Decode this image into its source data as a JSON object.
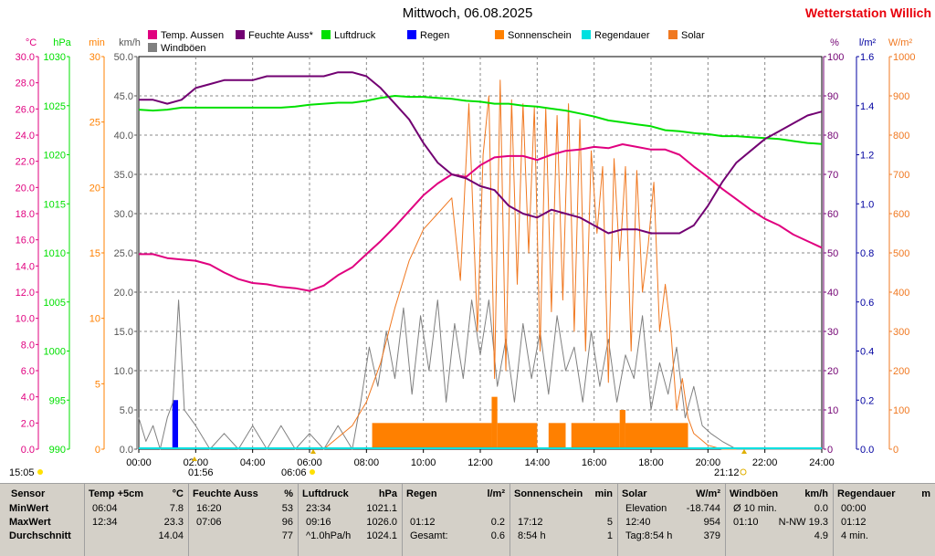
{
  "title": "Mittwoch, 06.08.2025",
  "station": "Wetterstation Willich",
  "colors": {
    "temp": "#e0007f",
    "humidity": "#720072",
    "pressure": "#00e000",
    "rain": "#0000ff",
    "sunshine": "#ff8000",
    "solar": "#f07820",
    "wind": "#808080",
    "rainrate": "#00e0e0",
    "grid": "#888888"
  },
  "legend": [
    {
      "label": "Temp. Aussen",
      "color": "#e0007f"
    },
    {
      "label": "Feuchte Auss*",
      "color": "#720072"
    },
    {
      "label": "Luftdruck",
      "color": "#00e000"
    },
    {
      "label": "Regen",
      "color": "#0000ff"
    },
    {
      "label": "Sonnenschein",
      "color": "#ff8000"
    },
    {
      "label": "Regendauer",
      "color": "#00e0e0"
    },
    {
      "label": "Solar",
      "color": "#f07820"
    },
    {
      "label": "Windböen",
      "color": "#808080"
    }
  ],
  "axis_units": {
    "temp": "°C",
    "pressure": "hPa",
    "sunmin": "min",
    "wind": "km/h",
    "humidity": "%",
    "rain": "l/m²",
    "solar": "W/m²"
  },
  "axis_ticks": {
    "temp": [
      "0.0",
      "2.0",
      "4.0",
      "6.0",
      "8.0",
      "10.0",
      "12.0",
      "14.0",
      "16.0",
      "18.0",
      "20.0",
      "22.0",
      "24.0",
      "26.0",
      "28.0",
      "30.0"
    ],
    "pressure": [
      "990",
      "995",
      "1000",
      "1005",
      "1010",
      "1015",
      "1020",
      "1025",
      "1030"
    ],
    "sunmin": [
      "0",
      "5",
      "10",
      "15",
      "20",
      "25",
      "30"
    ],
    "wind": [
      "0.0",
      "5.0",
      "10.0",
      "15.0",
      "20.0",
      "25.0",
      "30.0",
      "35.0",
      "40.0",
      "45.0",
      "50.0"
    ],
    "humidity": [
      "0",
      "10",
      "20",
      "30",
      "40",
      "50",
      "60",
      "70",
      "80",
      "90",
      "100"
    ],
    "rain": [
      "0.0",
      "0.2",
      "0.4",
      "0.6",
      "0.8",
      "1.0",
      "1.2",
      "1.4",
      "1.6"
    ],
    "solar": [
      "0",
      "100",
      "200",
      "300",
      "400",
      "500",
      "600",
      "700",
      "800",
      "900",
      "1000"
    ],
    "x": [
      "00:00",
      "02:00",
      "04:00",
      "06:00",
      "08:00",
      "10:00",
      "12:00",
      "14:00",
      "16:00",
      "18:00",
      "20:00",
      "22:00",
      "24:00"
    ]
  },
  "sun_markers": {
    "left_time": "15:05",
    "moon_time": "01:56",
    "sunrise_time": "06:06",
    "sunset_time": "21:12"
  },
  "chart_data": {
    "type": "line",
    "x_unit": "hours",
    "xlim": [
      0,
      24
    ],
    "series": [
      {
        "name": "Temp. Aussen",
        "axis": "temp",
        "ylim": [
          0,
          30
        ],
        "x": [
          0,
          0.5,
          1,
          1.5,
          2,
          2.5,
          3,
          3.5,
          4,
          4.5,
          5,
          5.5,
          6,
          6.5,
          7,
          7.5,
          8,
          8.5,
          9,
          9.5,
          10,
          10.5,
          11,
          11.5,
          12,
          12.5,
          13,
          13.5,
          14,
          14.5,
          15,
          15.5,
          16,
          16.5,
          17,
          17.5,
          18,
          18.5,
          19,
          19.5,
          20,
          20.5,
          21,
          21.5,
          22,
          22.5,
          23,
          23.5,
          24
        ],
        "y": [
          14.9,
          14.9,
          14.6,
          14.5,
          14.4,
          14.1,
          13.5,
          13.0,
          12.7,
          12.6,
          12.4,
          12.3,
          12.1,
          12.5,
          13.3,
          13.9,
          14.9,
          15.9,
          17.0,
          18.2,
          19.4,
          20.3,
          21.0,
          20.8,
          21.7,
          22.3,
          22.4,
          22.4,
          22.1,
          22.5,
          22.8,
          22.9,
          23.1,
          23.0,
          23.3,
          23.1,
          22.9,
          22.9,
          22.5,
          21.6,
          20.8,
          19.9,
          19.1,
          18.3,
          17.6,
          17.1,
          16.4,
          15.9,
          15.4
        ]
      },
      {
        "name": "Feuchte Auss*",
        "axis": "humidity",
        "ylim": [
          0,
          100
        ],
        "x": [
          0,
          0.5,
          1,
          1.5,
          2,
          2.5,
          3,
          3.5,
          4,
          4.5,
          5,
          5.5,
          6,
          6.5,
          7,
          7.5,
          8,
          8.5,
          9,
          9.5,
          10,
          10.5,
          11,
          11.5,
          12,
          12.5,
          13,
          13.5,
          14,
          14.5,
          15,
          15.5,
          16,
          16.5,
          17,
          17.5,
          18,
          18.5,
          19,
          19.5,
          20,
          20.5,
          21,
          21.5,
          22,
          22.5,
          23,
          23.5,
          24
        ],
        "y": [
          89,
          89,
          88,
          89,
          92,
          93,
          94,
          94,
          94,
          95,
          95,
          95,
          95,
          95,
          96,
          96,
          95,
          92,
          88,
          84,
          78,
          73,
          70,
          69,
          67,
          66,
          62,
          60,
          59,
          61,
          60,
          59,
          57,
          55,
          56,
          56,
          55,
          55,
          55,
          57,
          62,
          68,
          73,
          76,
          79,
          81,
          83,
          85,
          86
        ]
      },
      {
        "name": "Luftdruck",
        "axis": "pressure",
        "ylim": [
          990,
          1030
        ],
        "x": [
          0,
          0.5,
          1,
          1.5,
          2,
          2.5,
          3,
          3.5,
          4,
          4.5,
          5,
          5.5,
          6,
          6.5,
          7,
          7.5,
          8,
          8.5,
          9,
          9.5,
          10,
          10.5,
          11,
          11.5,
          12,
          12.5,
          13,
          13.5,
          14,
          14.5,
          15,
          15.5,
          16,
          16.5,
          17,
          17.5,
          18,
          18.5,
          19,
          19.5,
          20,
          20.5,
          21,
          21.5,
          22,
          22.5,
          23,
          23.5,
          24
        ],
        "y": [
          1024.6,
          1024.5,
          1024.6,
          1024.8,
          1024.8,
          1024.8,
          1024.8,
          1024.8,
          1024.8,
          1024.8,
          1024.8,
          1024.9,
          1025.1,
          1025.2,
          1025.3,
          1025.3,
          1025.5,
          1025.8,
          1026.0,
          1025.9,
          1025.9,
          1025.8,
          1025.7,
          1025.5,
          1025.4,
          1025.2,
          1025.2,
          1025.0,
          1024.9,
          1024.7,
          1024.5,
          1024.2,
          1023.9,
          1023.5,
          1023.3,
          1023.1,
          1022.9,
          1022.5,
          1022.4,
          1022.2,
          1022.1,
          1021.9,
          1021.9,
          1021.8,
          1021.7,
          1021.6,
          1021.4,
          1021.2,
          1021.1
        ]
      },
      {
        "name": "Solar",
        "axis": "solar",
        "ylim": [
          0,
          1000
        ],
        "x": [
          6.5,
          7,
          7.5,
          8,
          8.5,
          9,
          9.5,
          10,
          10.5,
          11,
          11.3,
          11.6,
          11.9,
          12.1,
          12.3,
          12.5,
          12.7,
          12.9,
          13.1,
          13.3,
          13.5,
          13.7,
          13.9,
          14.1,
          14.3,
          14.5,
          14.7,
          14.9,
          15.1,
          15.3,
          15.5,
          15.7,
          15.9,
          16.1,
          16.3,
          16.5,
          16.7,
          16.9,
          17.1,
          17.3,
          17.5,
          17.7,
          17.9,
          18.1,
          18.3,
          18.5,
          18.7,
          18.9,
          19.1,
          19.3,
          19.5,
          20,
          20.5,
          21
        ],
        "y": [
          0,
          30,
          60,
          120,
          220,
          360,
          480,
          560,
          600,
          640,
          430,
          880,
          300,
          750,
          900,
          180,
          940,
          200,
          890,
          420,
          880,
          500,
          870,
          250,
          870,
          350,
          850,
          380,
          880,
          300,
          840,
          250,
          760,
          550,
          720,
          170,
          740,
          480,
          720,
          250,
          710,
          400,
          520,
          680,
          300,
          420,
          300,
          100,
          180,
          80,
          40,
          10,
          0,
          0
        ]
      },
      {
        "name": "Windböen",
        "axis": "wind",
        "ylim": [
          0,
          50
        ],
        "x": [
          0,
          0.25,
          0.5,
          0.75,
          1,
          1.2,
          1.4,
          1.6,
          2,
          2.5,
          3,
          3.5,
          4,
          4.5,
          5,
          5.5,
          6,
          6.5,
          7,
          7.5,
          7.8,
          8.1,
          8.4,
          8.7,
          9,
          9.3,
          9.6,
          9.9,
          10.2,
          10.5,
          10.8,
          11.1,
          11.4,
          11.7,
          12,
          12.3,
          12.6,
          12.9,
          13.2,
          13.5,
          13.8,
          14.1,
          14.4,
          14.7,
          15,
          15.3,
          15.6,
          15.9,
          16.2,
          16.5,
          16.8,
          17.1,
          17.4,
          17.7,
          18,
          18.3,
          18.6,
          18.9,
          19.2,
          19.5,
          19.8,
          20.1,
          20.5,
          21,
          22,
          23,
          24
        ],
        "y": [
          4,
          1,
          3,
          0,
          4,
          6,
          19,
          5,
          3,
          0,
          2,
          0,
          3,
          0,
          3,
          0,
          2,
          0,
          3,
          0,
          6,
          13,
          8,
          15,
          9,
          18,
          7,
          17,
          10,
          19,
          6,
          16,
          9,
          19,
          12,
          19,
          8,
          14,
          6,
          16,
          9,
          15,
          7,
          17,
          10,
          13,
          6,
          15,
          8,
          14,
          6,
          12,
          9,
          17,
          5,
          11,
          7,
          13,
          4,
          8,
          3,
          2,
          1,
          0,
          0,
          0,
          0
        ]
      }
    ],
    "bars": [
      {
        "name": "Regen",
        "axis": "rain",
        "ylim": [
          0,
          1.6
        ],
        "intervals": [
          [
            1.18,
            1.38,
            0.2
          ]
        ]
      },
      {
        "name": "Sonnenschein",
        "axis": "sunmin",
        "ylim": [
          0,
          30
        ],
        "intervals": [
          [
            8.2,
            12.4,
            2
          ],
          [
            12.4,
            12.6,
            4
          ],
          [
            12.6,
            14.0,
            2
          ],
          [
            14.4,
            15.0,
            2
          ],
          [
            15.2,
            16.9,
            2
          ],
          [
            16.9,
            17.1,
            3
          ],
          [
            17.1,
            19.3,
            2
          ]
        ]
      }
    ]
  },
  "stats": {
    "headers": [
      {
        "name": "Sensor"
      },
      {
        "name": "Temp +5cm",
        "unit": "°C"
      },
      {
        "name": "Feuchte Auss",
        "unit": "%"
      },
      {
        "name": "Luftdruck",
        "unit": "hPa"
      },
      {
        "name": "Regen",
        "unit": "l/m²"
      },
      {
        "name": "Sonnenschein",
        "unit": "min"
      },
      {
        "name": "Solar",
        "unit": "W/m²"
      },
      {
        "name": "Windböen",
        "unit": "km/h"
      },
      {
        "name": "Regendauer",
        "unit": "m"
      }
    ],
    "row_labels": [
      "MinWert",
      "MaxWert",
      "Durchschnitt"
    ],
    "temp": [
      [
        "06:04",
        "7.8"
      ],
      [
        "12:34",
        "23.3"
      ],
      [
        "",
        "14.04"
      ]
    ],
    "humidity": [
      [
        "16:20",
        "53"
      ],
      [
        "07:06",
        "96"
      ],
      [
        "",
        "77"
      ]
    ],
    "pressure": [
      [
        "23:34",
        "1021.1"
      ],
      [
        "09:16",
        "1026.0"
      ],
      [
        "^1.0hPa/h",
        "1024.1"
      ]
    ],
    "rain": [
      [
        "",
        ""
      ],
      [
        "01:12",
        "0.2"
      ],
      [
        "Gesamt:",
        "0.6"
      ]
    ],
    "sunshine": [
      [
        "",
        ""
      ],
      [
        "17:12",
        "5"
      ],
      [
        "8:54 h",
        "1"
      ]
    ],
    "solar": [
      [
        "Elevation",
        "-18.744"
      ],
      [
        "12:40",
        "954"
      ],
      [
        "Tag:8:54 h",
        "379"
      ]
    ],
    "wind": [
      [
        "Ø 10 min.",
        "0.0"
      ],
      [
        "01:10",
        "N-NW 19.3"
      ],
      [
        "",
        "4.9"
      ]
    ],
    "raindur": [
      [
        "00:00",
        ""
      ],
      [
        "01:12",
        ""
      ],
      [
        "4 min.",
        ""
      ]
    ]
  }
}
